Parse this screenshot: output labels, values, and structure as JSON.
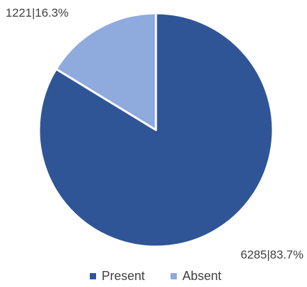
{
  "chart_data": {
    "type": "pie",
    "title": "",
    "start_angle_deg": 0,
    "direction": "clockwise",
    "legend_position": "bottom",
    "slices": [
      {
        "name": "Present",
        "value": 6285,
        "percent": 83.7,
        "label": "6285|83.7%",
        "color": "#2F5597"
      },
      {
        "name": "Absent",
        "value": 1221,
        "percent": 16.3,
        "label": "1221|16.3%",
        "color": "#8FAADC"
      }
    ]
  }
}
